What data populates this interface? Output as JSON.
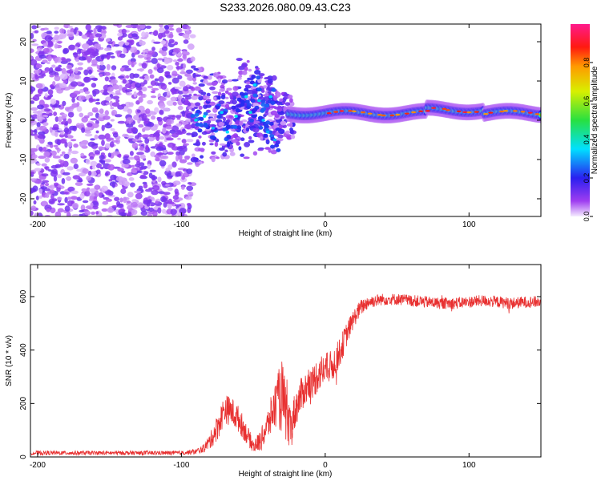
{
  "figure_title": "S233.2026.080.09.43.C23",
  "colorbar": {
    "label": "Normalized spectral amplitude",
    "ticks": [
      "0.0",
      "0.2",
      "0.4",
      "0.6",
      "0.8"
    ],
    "tick_values": [
      0.0,
      0.2,
      0.4,
      0.6,
      0.8
    ],
    "range": [
      0,
      1
    ]
  },
  "chart_data": [
    {
      "type": "heatmap",
      "title": "",
      "xlabel": "Height of straight line (km)",
      "ylabel": "Frequency (Hz)",
      "xlim": [
        -205,
        150
      ],
      "ylim": [
        -24.5,
        24.5
      ],
      "x_ticks": [
        -200,
        -100,
        0,
        100
      ],
      "x_tick_labels": [
        "-200",
        "-100",
        "0",
        "100"
      ],
      "y_ticks": [
        -20,
        -10,
        0,
        10,
        20
      ],
      "y_tick_labels": [
        "-20",
        "-10",
        "0",
        "10",
        "20"
      ],
      "colormap": "rainbow (purple 0.0 -> blue -> cyan -> green -> yellow -> red -> magenta 1.0)",
      "features": [
        {
          "description": "broadband speckled noise",
          "x_range": [
            -205,
            -92
          ],
          "freq_range": [
            -24.5,
            24.5
          ],
          "amplitude": [
            0.0,
            0.15
          ]
        },
        {
          "description": "scintillating carrier region",
          "x_range": [
            -92,
            -25
          ],
          "freq_range": [
            -8,
            14
          ],
          "amplitude": [
            0.05,
            0.3
          ]
        },
        {
          "description": "stable carrier line",
          "x_range": [
            -25,
            150
          ],
          "freq_center": [
            1,
            3
          ],
          "amplitude_peak": 1.0
        }
      ]
    },
    {
      "type": "line",
      "title": "",
      "xlabel": "Height of straight line (km)",
      "ylabel": "SNR (10 * v/v)",
      "xlim": [
        -205,
        150
      ],
      "ylim": [
        0,
        720
      ],
      "x_ticks": [
        -200,
        -100,
        0,
        100
      ],
      "x_tick_labels": [
        "-200",
        "-100",
        "0",
        "100"
      ],
      "y_ticks": [
        0,
        200,
        400,
        600
      ],
      "y_tick_labels": [
        "0",
        "200",
        "400",
        "600"
      ],
      "color": "#e83030",
      "series": [
        {
          "name": "SNR",
          "x": [
            -205,
            -180,
            -150,
            -120,
            -100,
            -90,
            -85,
            -80,
            -75,
            -70,
            -65,
            -60,
            -55,
            -50,
            -45,
            -40,
            -35,
            -30,
            -25,
            -20,
            -15,
            -10,
            -5,
            0,
            5,
            10,
            15,
            20,
            25,
            30,
            40,
            50,
            60,
            70,
            80,
            90,
            100,
            110,
            120,
            130,
            140,
            150
          ],
          "values": [
            15,
            15,
            15,
            15,
            15,
            20,
            30,
            60,
            110,
            180,
            170,
            140,
            90,
            40,
            60,
            120,
            190,
            230,
            100,
            190,
            250,
            270,
            310,
            330,
            340,
            390,
            460,
            520,
            560,
            580,
            590,
            590,
            585,
            580,
            575,
            575,
            580,
            585,
            580,
            575,
            580,
            580
          ],
          "spread": [
            8,
            8,
            8,
            8,
            8,
            10,
            15,
            30,
            50,
            55,
            55,
            50,
            40,
            25,
            40,
            60,
            90,
            140,
            80,
            70,
            65,
            60,
            70,
            60,
            60,
            55,
            45,
            35,
            30,
            25,
            22,
            22,
            22,
            22,
            22,
            22,
            22,
            22,
            22,
            22,
            22,
            22
          ]
        }
      ]
    }
  ]
}
